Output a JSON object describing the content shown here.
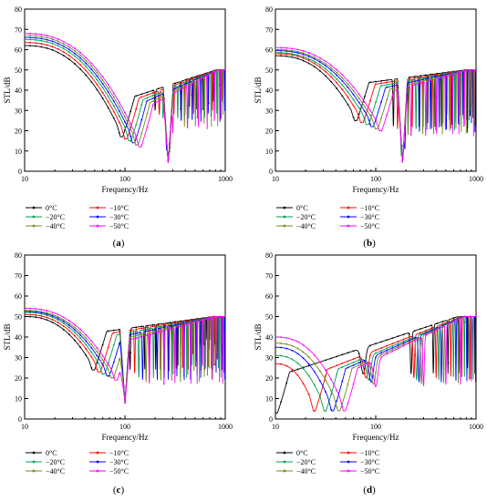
{
  "colors": {
    "0°C": "#000000",
    "-10°C": "#ff0000",
    "-20°C": "#00a050",
    "-30°C": "#0000ff",
    "-40°C": "#6e8c1e",
    "-50°C": "#ff00ff"
  },
  "chart_data": [
    {
      "type": "line",
      "panel_label": "(a)",
      "xlabel": "Frequency/Hz",
      "ylabel": "STL/dB",
      "xscale": "log",
      "xlim": [
        10,
        1000
      ],
      "ylim": [
        0,
        80
      ],
      "x_ticks": [
        "10",
        "100",
        "1000"
      ],
      "y_ticks": [
        "0",
        "10",
        "20",
        "30",
        "40",
        "50",
        "60",
        "70",
        "80"
      ],
      "grid": false,
      "legend_position": "below",
      "series": [
        {
          "name": "0°C",
          "y10": 62,
          "dip_freq": 95,
          "dip_db": 17,
          "period": 80,
          "trough_offset": 0,
          "hi_trough": 30
        },
        {
          "name": "−10°C",
          "y10": 63.5,
          "dip_freq": 105,
          "dip_db": 16,
          "period": 88,
          "trough_offset": 0,
          "hi_trough": 28
        },
        {
          "name": "−20°C",
          "y10": 65,
          "dip_freq": 115,
          "dip_db": 15,
          "period": 96,
          "trough_offset": 0,
          "hi_trough": 26
        },
        {
          "name": "−30°C",
          "y10": 66,
          "dip_freq": 125,
          "dip_db": 14,
          "period": 104,
          "trough_offset": 0,
          "hi_trough": 24
        },
        {
          "name": "−40°C",
          "y10": 67,
          "dip_freq": 135,
          "dip_db": 13,
          "period": 112,
          "trough_offset": 0,
          "hi_trough": 22
        },
        {
          "name": "−50°C",
          "y10": 68,
          "dip_freq": 145,
          "dip_db": 12,
          "period": 120,
          "trough_offset": 0,
          "hi_trough": 20
        }
      ],
      "common_dip": {
        "freq": 270,
        "db": 4
      }
    },
    {
      "type": "line",
      "panel_label": "(b)",
      "xlabel": "Frequency/Hz",
      "ylabel": "STL/dB",
      "xscale": "log",
      "xlim": [
        10,
        1000
      ],
      "ylim": [
        0,
        80
      ],
      "x_ticks": [
        "10",
        "100",
        "1000"
      ],
      "y_ticks": [
        "0",
        "10",
        "20",
        "30",
        "40",
        "50",
        "60",
        "70",
        "80"
      ],
      "grid": false,
      "legend_position": "below",
      "series": [
        {
          "name": "0°C",
          "y10": 57,
          "dip_freq": 65,
          "dip_db": 25,
          "period": 60,
          "hi_trough": 22
        },
        {
          "name": "−10°C",
          "y10": 58,
          "dip_freq": 75,
          "dip_db": 24,
          "period": 66,
          "hi_trough": 21
        },
        {
          "name": "−20°C",
          "y10": 58.5,
          "dip_freq": 85,
          "dip_db": 23,
          "period": 72,
          "hi_trough": 20
        },
        {
          "name": "−30°C",
          "y10": 59.5,
          "dip_freq": 95,
          "dip_db": 22,
          "period": 78,
          "hi_trough": 19
        },
        {
          "name": "−40°C",
          "y10": 60,
          "dip_freq": 105,
          "dip_db": 21,
          "period": 84,
          "hi_trough": 18
        },
        {
          "name": "−50°C",
          "y10": 61,
          "dip_freq": 115,
          "dip_db": 20,
          "period": 90,
          "hi_trough": 17
        }
      ],
      "common_dip": {
        "freq": 185,
        "db": 4
      }
    },
    {
      "type": "line",
      "panel_label": "(c)",
      "xlabel": "Frequency/Hz",
      "ylabel": "STL/dB",
      "xscale": "log",
      "xlim": [
        10,
        1000
      ],
      "ylim": [
        0,
        80
      ],
      "x_ticks": [
        "10",
        "100",
        "1000"
      ],
      "y_ticks": [
        "0",
        "10",
        "20",
        "30",
        "40",
        "50",
        "60",
        "70",
        "80"
      ],
      "grid": false,
      "legend_position": "below",
      "series": [
        {
          "name": "0°C",
          "y10": 50,
          "dip_freq": 50,
          "dip_db": 24,
          "period": 45,
          "hi_trough": 24
        },
        {
          "name": "−10°C",
          "y10": 51,
          "dip_freq": 57,
          "dip_db": 23,
          "period": 50,
          "hi_trough": 22
        },
        {
          "name": "−20°C",
          "y10": 52,
          "dip_freq": 63,
          "dip_db": 22,
          "period": 55,
          "hi_trough": 20
        },
        {
          "name": "−30°C",
          "y10": 52.5,
          "dip_freq": 70,
          "dip_db": 21,
          "period": 60,
          "hi_trough": 19
        },
        {
          "name": "−40°C",
          "y10": 53,
          "dip_freq": 77,
          "dip_db": 20,
          "period": 65,
          "hi_trough": 18
        },
        {
          "name": "−50°C",
          "y10": 54,
          "dip_freq": 84,
          "dip_db": 19,
          "period": 70,
          "hi_trough": 17
        }
      ],
      "common_dip": {
        "freq": 100,
        "db": 8
      }
    },
    {
      "type": "line",
      "panel_label": "(d)",
      "xlabel": "Frequency/Hz",
      "ylabel": "STL/dB",
      "xscale": "log",
      "xlim": [
        10,
        1000
      ],
      "ylim": [
        0,
        80
      ],
      "x_ticks": [
        "10",
        "100",
        "1000"
      ],
      "y_ticks": [
        "0",
        "10",
        "20",
        "30",
        "40",
        "50",
        "60",
        "70",
        "80"
      ],
      "grid": false,
      "legend_position": "below",
      "series": [
        {
          "name": "0°C",
          "y10": 3,
          "dip_freq": 10.5,
          "dip_db": 3,
          "period": 150,
          "hi_trough": 22
        },
        {
          "name": "−10°C",
          "y10": 27,
          "dip_freq": 25,
          "dip_db": 4,
          "period": 160,
          "hi_trough": 20
        },
        {
          "name": "−20°C",
          "y10": 31,
          "dip_freq": 32,
          "dip_db": 4,
          "period": 170,
          "hi_trough": 19
        },
        {
          "name": "−30°C",
          "y10": 35,
          "dip_freq": 38,
          "dip_db": 4,
          "period": 180,
          "hi_trough": 18
        },
        {
          "name": "−40°C",
          "y10": 37,
          "dip_freq": 44,
          "dip_db": 4,
          "period": 190,
          "hi_trough": 17
        },
        {
          "name": "−50°C",
          "y10": 40,
          "dip_freq": 50,
          "dip_db": 4,
          "period": 200,
          "hi_trough": 16
        }
      ],
      "common_dip": null
    }
  ]
}
